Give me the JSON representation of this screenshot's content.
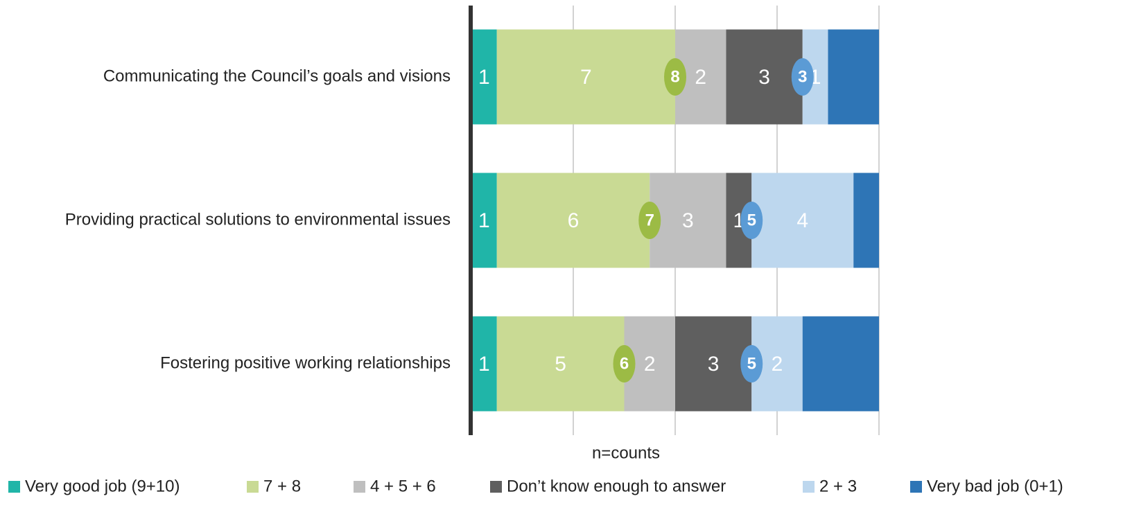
{
  "chart_data": {
    "type": "stacked_barh",
    "categories": [
      "Communicating the Council’s goals and visions",
      "Providing practical solutions to environmental issues",
      "Fostering positive working relationships"
    ],
    "series": [
      {
        "name": "Very good job (9+10)",
        "color": "#20b5a8",
        "values": [
          1,
          1,
          1
        ]
      },
      {
        "name": "7 + 8",
        "color": "#c9da94",
        "values": [
          7,
          6,
          5
        ]
      },
      {
        "name": "4 + 5 + 6",
        "color": "#bfbfbf",
        "values": [
          2,
          3,
          2
        ]
      },
      {
        "name": "Don’t know enough to answer",
        "color": "#5f5f5f",
        "values": [
          3,
          1,
          3
        ]
      },
      {
        "name": "2 + 3",
        "color": "#bdd7ee",
        "values": [
          1,
          4,
          2
        ]
      },
      {
        "name": "Very bad job (0+1)",
        "color": "#2e75b6",
        "values": [
          2,
          1,
          3
        ],
        "data_labels": false
      }
    ],
    "top_box_values": [
      8,
      7,
      6
    ],
    "top_box_color": "#9cbb45",
    "bottom_box_values": [
      3,
      5,
      5
    ],
    "bottom_box_color": "#5b9bd5",
    "xlabel": "n=counts",
    "xlim": [
      0,
      16
    ],
    "xticks": [
      0,
      4,
      8,
      12,
      16
    ],
    "grid": true,
    "legend": "bottom"
  }
}
